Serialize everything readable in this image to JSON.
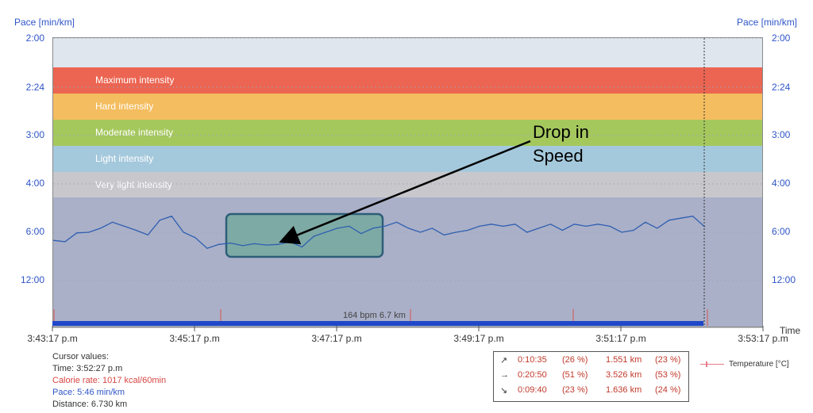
{
  "axes": {
    "left_title": "Pace [min/km]",
    "right_title": "Pace [min/km]",
    "x_title": "Time",
    "y_ticks": [
      "2:00",
      "2:24",
      "3:00",
      "4:00",
      "6:00",
      "12:00"
    ],
    "x_ticks": [
      "3:43:17 p.m",
      "3:45:17 p.m",
      "3:47:17 p.m",
      "3:49:17 p.m",
      "3:51:17 p.m",
      "3:53:17 p.m"
    ]
  },
  "zones": [
    {
      "label": "Maximum intensity",
      "color": "#eb6552"
    },
    {
      "label": "Hard intensity",
      "color": "#f4bd5f"
    },
    {
      "label": "Moderate intensity",
      "color": "#a5c85d"
    },
    {
      "label": "Light intensity",
      "color": "#a5c9dc"
    },
    {
      "label": "Very light intensity",
      "color": "#c8c8cc"
    }
  ],
  "hr_label": "164 bpm 6.7 km",
  "annotation": {
    "line1": "Drop in",
    "line2": "Speed"
  },
  "cursor": {
    "title": "Cursor values:",
    "time": "Time: 3:52:27 p.m",
    "calorie": "Calorie rate: 1017 kcal/60min",
    "pace": "Pace: 5:46 min/km",
    "distance": "Distance: 6.730 km"
  },
  "summary": [
    {
      "symbol": "↗",
      "duration": "0:10:35",
      "pct_time": "(26 %)",
      "distance": "1.551 km",
      "pct_dist": "(23 %)"
    },
    {
      "symbol": "→",
      "duration": "0:20:50",
      "pct_time": "(51 %)",
      "distance": "3.526 km",
      "pct_dist": "(53 %)"
    },
    {
      "symbol": "↘",
      "duration": "0:09:40",
      "pct_time": "(23 %)",
      "distance": "1.636 km",
      "pct_dist": "(24 %)"
    }
  ],
  "legend": {
    "label": "Temperature [°C]"
  },
  "colors": {
    "pace_line": "#2f5fb0",
    "hr_bar": "#1f48c9",
    "pace_bg": "#aab0c8",
    "highlight": "#6fa89a"
  },
  "chart_data": {
    "type": "line",
    "title": "",
    "xlabel": "Time",
    "ylabel": "Pace [min/km]",
    "x_range": [
      "3:43:17 p.m",
      "3:53:17 p.m"
    ],
    "series": [
      {
        "name": "Pace",
        "x": [
          "3:43:17",
          "3:43:27",
          "3:43:37",
          "3:43:47",
          "3:43:57",
          "3:44:07",
          "3:44:17",
          "3:44:27",
          "3:44:37",
          "3:44:47",
          "3:44:57",
          "3:45:07",
          "3:45:17",
          "3:45:27",
          "3:45:37",
          "3:45:47",
          "3:45:57",
          "3:46:07",
          "3:46:17",
          "3:46:27",
          "3:46:37",
          "3:46:47",
          "3:46:57",
          "3:47:07",
          "3:47:17",
          "3:47:27",
          "3:47:37",
          "3:47:47",
          "3:47:57",
          "3:48:07",
          "3:48:17",
          "3:48:27",
          "3:48:37",
          "3:48:47",
          "3:48:57",
          "3:49:07",
          "3:49:17",
          "3:49:27",
          "3:49:37",
          "3:49:47",
          "3:49:57",
          "3:50:07",
          "3:50:17",
          "3:50:27",
          "3:50:37",
          "3:50:47",
          "3:50:57",
          "3:51:07",
          "3:51:17",
          "3:51:27",
          "3:51:37",
          "3:51:47",
          "3:51:57",
          "3:52:07",
          "3:52:17",
          "3:52:27"
        ],
        "y": [
          "7:00",
          "7:10",
          "6:05",
          "6:00",
          "5:50",
          "5:35",
          "5:45",
          "5:55",
          "6:20",
          "5:30",
          "5:20",
          "6:00",
          "6:40",
          "8:00",
          "7:30",
          "7:20",
          "7:40",
          "7:25",
          "7:35",
          "7:30",
          "7:10",
          "7:50",
          "6:30",
          "6:00",
          "5:50",
          "5:45",
          "6:10",
          "5:50",
          "5:45",
          "5:35",
          "5:50",
          "6:00",
          "5:50",
          "6:20",
          "6:00",
          "5:55",
          "5:45",
          "5:40",
          "5:45",
          "5:40",
          "6:00",
          "5:50",
          "5:40",
          "5:55",
          "5:40",
          "5:45",
          "5:40",
          "5:45",
          "6:00",
          "5:55",
          "5:35",
          "5:50",
          "5:30",
          "5:25",
          "5:20",
          "5:46"
        ]
      }
    ],
    "y_ticks": [
      "2:00",
      "2:24",
      "3:00",
      "4:00",
      "6:00",
      "12:00"
    ],
    "y_axis": "pace, inverted (faster at top)"
  }
}
